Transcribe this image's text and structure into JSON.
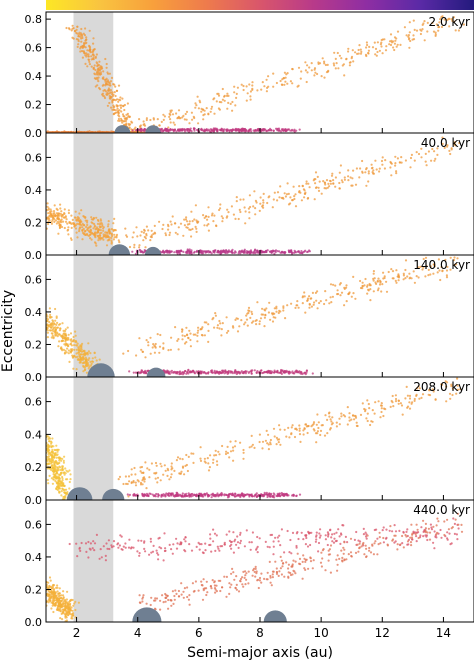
{
  "figure": {
    "ylabel": "Eccentricity",
    "xlabel": "Semi-major axis (au)",
    "colorbar": {
      "colors": [
        "#fde725",
        "#f9c440",
        "#f8a03c",
        "#ee7b4c",
        "#d9566b",
        "#b83a8a",
        "#8e2ea3",
        "#5a2aa6",
        "#231a7d"
      ]
    }
  },
  "chart_data": [
    {
      "type": "scatter",
      "label": "2.0 kyr",
      "xlim": [
        1.0,
        15.0
      ],
      "ylim": [
        0.0,
        0.85
      ],
      "xticks": [
        2,
        4,
        6,
        8,
        10,
        12,
        14
      ],
      "yticks": [
        0.0,
        0.2,
        0.4,
        0.6,
        0.8
      ],
      "shaded_region": [
        1.9,
        3.2
      ],
      "planets": [
        {
          "a": 3.5,
          "r": 0.022
        },
        {
          "a": 4.5,
          "r": 0.02
        }
      ],
      "ridges": [
        {
          "x": [
            1.0,
            4.0
          ],
          "y": [
            0.0,
            0.0
          ],
          "color": "#e8823a"
        },
        {
          "x": [
            2.0,
            3.8
          ],
          "y": [
            0.72,
            0.0
          ],
          "color": "#f09a3a"
        },
        {
          "x": [
            3.8,
            14.5
          ],
          "y": [
            0.0,
            0.8
          ],
          "color": "#ef9a3c"
        },
        {
          "x": [
            4.0,
            9.2
          ],
          "y": [
            0.02,
            0.02
          ],
          "color": "#c03a80"
        }
      ]
    },
    {
      "type": "scatter",
      "label": "40.0 kyr",
      "xlim": [
        1.0,
        15.0
      ],
      "ylim": [
        0.0,
        0.75
      ],
      "xticks": [
        2,
        4,
        6,
        8,
        10,
        12,
        14
      ],
      "yticks": [
        0.0,
        0.2,
        0.4,
        0.6
      ],
      "shaded_region": [
        1.9,
        3.2
      ],
      "planets": [
        {
          "a": 3.4,
          "r": 0.055
        },
        {
          "a": 4.5,
          "r": 0.025
        }
      ],
      "ridges": [
        {
          "x": [
            1.0,
            3.2
          ],
          "y": [
            0.25,
            0.12
          ],
          "color": "#f4a23a"
        },
        {
          "x": [
            3.6,
            14.5
          ],
          "y": [
            0.08,
            0.68
          ],
          "color": "#ef9a3c"
        },
        {
          "x": [
            4.0,
            9.5
          ],
          "y": [
            0.02,
            0.02
          ],
          "color": "#b83a8a"
        }
      ]
    },
    {
      "type": "scatter",
      "label": "140.0 kyr",
      "xlim": [
        1.0,
        15.0
      ],
      "ylim": [
        0.0,
        0.75
      ],
      "xticks": [
        2,
        4,
        6,
        8,
        10,
        12,
        14
      ],
      "yticks": [
        0.0,
        0.2,
        0.4,
        0.6
      ],
      "shaded_region": [
        1.9,
        3.2
      ],
      "planets": [
        {
          "a": 2.8,
          "r": 0.09
        },
        {
          "a": 4.6,
          "r": 0.04
        }
      ],
      "ridges": [
        {
          "x": [
            1.0,
            2.6
          ],
          "y": [
            0.35,
            0.05
          ],
          "color": "#f3b03a"
        },
        {
          "x": [
            3.6,
            14.5
          ],
          "y": [
            0.15,
            0.72
          ],
          "color": "#ef9a3c"
        },
        {
          "x": [
            4.0,
            9.5
          ],
          "y": [
            0.03,
            0.03
          ],
          "color": "#c23c7d"
        }
      ]
    },
    {
      "type": "scatter",
      "label": "208.0 kyr",
      "xlim": [
        1.0,
        15.0
      ],
      "ylim": [
        0.0,
        0.75
      ],
      "xticks": [
        2,
        4,
        6,
        8,
        10,
        12,
        14
      ],
      "yticks": [
        0.0,
        0.2,
        0.4,
        0.6
      ],
      "shaded_region": [
        1.9,
        3.2
      ],
      "planets": [
        {
          "a": 2.1,
          "r": 0.08
        },
        {
          "a": 3.2,
          "r": 0.06
        }
      ],
      "ridges": [
        {
          "x": [
            1.0,
            1.6
          ],
          "y": [
            0.35,
            0.05
          ],
          "color": "#f4c23a"
        },
        {
          "x": [
            3.4,
            14.5
          ],
          "y": [
            0.1,
            0.7
          ],
          "color": "#ef9a3c"
        },
        {
          "x": [
            3.8,
            9.2
          ],
          "y": [
            0.03,
            0.03
          ],
          "color": "#c03a80"
        }
      ]
    },
    {
      "type": "scatter",
      "label": "440.0 kyr",
      "xlim": [
        1.0,
        15.0
      ],
      "ylim": [
        0.0,
        0.75
      ],
      "xticks": [
        2,
        4,
        6,
        8,
        10,
        12,
        14
      ],
      "yticks": [
        0.0,
        0.2,
        0.4,
        0.6
      ],
      "shaded_region": [
        1.9,
        3.2
      ],
      "planets": [
        {
          "a": 4.3,
          "r": 0.1
        },
        {
          "a": 8.5,
          "r": 0.065
        }
      ],
      "ridges": [
        {
          "x": [
            1.0,
            1.8
          ],
          "y": [
            0.2,
            0.05
          ],
          "color": "#f4b03a"
        },
        {
          "x": [
            2.0,
            14.5
          ],
          "y": [
            0.45,
            0.55
          ],
          "color": "#d9566b"
        },
        {
          "x": [
            4.0,
            14.5
          ],
          "y": [
            0.1,
            0.6
          ],
          "color": "#e07356"
        }
      ]
    }
  ]
}
